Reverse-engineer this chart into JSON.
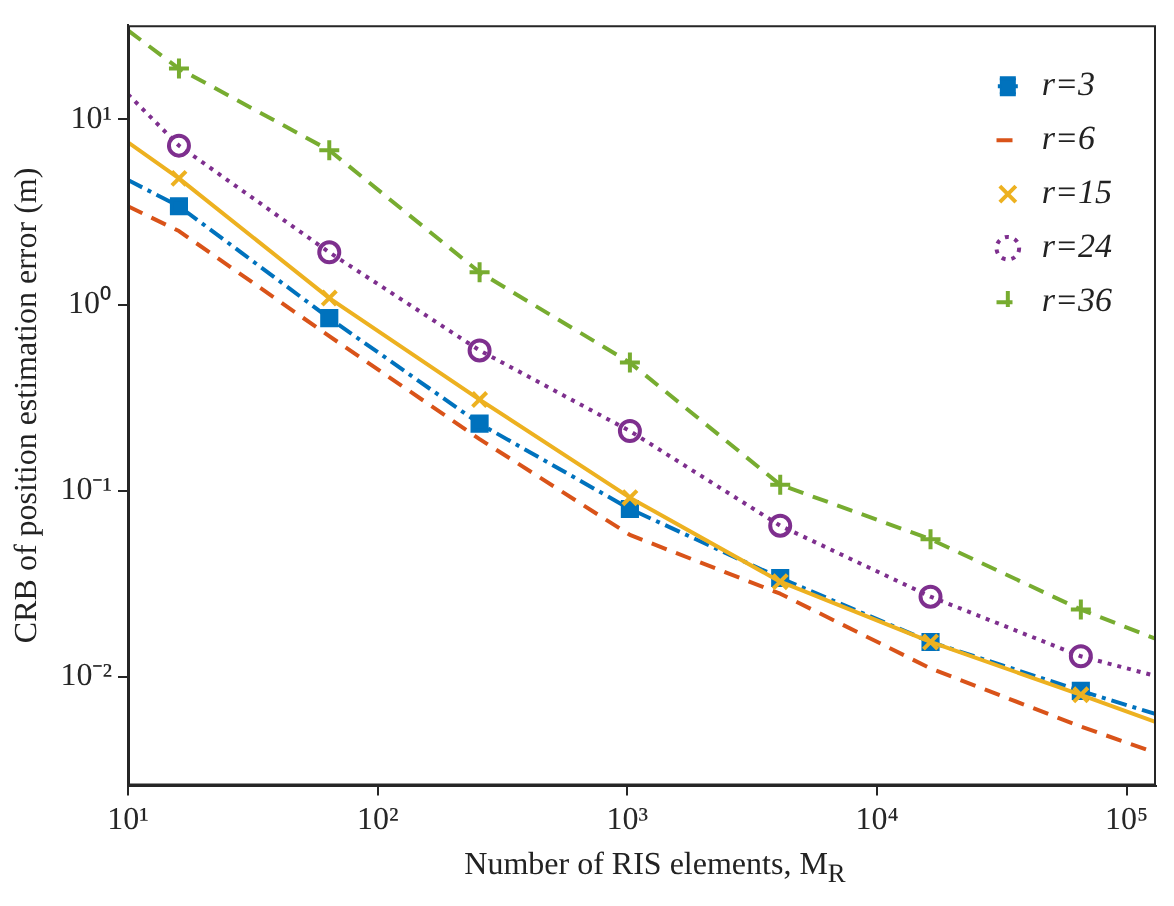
{
  "chart_data": {
    "type": "line",
    "xlabel": "Number of RIS elements, M$_{R}$",
    "ylabel": "CRB of position estimation error (m)",
    "log": "xy",
    "xlim": [
      10,
      131072
    ],
    "ylim": [
      0.0026,
      32
    ],
    "xticks": [
      {
        "value": 10,
        "label": "10¹"
      },
      {
        "value": 100,
        "label": "10²"
      },
      {
        "value": 1000,
        "label": "10³"
      },
      {
        "value": 10000,
        "label": "10⁴"
      },
      {
        "value": 100000,
        "label": "10⁵"
      }
    ],
    "yticks": [
      {
        "value": 0.01,
        "label": "10⁻²"
      },
      {
        "value": 0.1,
        "label": "10⁻¹"
      },
      {
        "value": 1,
        "label": "10⁰"
      },
      {
        "value": 10,
        "label": "10¹"
      }
    ],
    "x": [
      10,
      16,
      64,
      256,
      1024,
      4096,
      16384,
      65536,
      131072
    ],
    "grid": false,
    "legend": "top right",
    "series": [
      {
        "name": "r=3",
        "color": "#0072bd",
        "marker": "square",
        "line_style": "dashdot",
        "values": [
          4.7,
          3.4,
          0.85,
          0.23,
          0.08,
          0.034,
          0.0154,
          0.0084,
          0.0063
        ]
      },
      {
        "name": "r=6",
        "color": "#d95319",
        "marker": "none",
        "line_style": "dashed",
        "values": [
          3.4,
          2.5,
          0.68,
          0.19,
          0.058,
          0.028,
          0.0111,
          0.0054,
          0.0039
        ]
      },
      {
        "name": "r=15",
        "color": "#edb120",
        "marker": "x",
        "line_style": "solid",
        "values": [
          7.5,
          4.8,
          1.09,
          0.31,
          0.092,
          0.0325,
          0.0154,
          0.008,
          0.0057
        ]
      },
      {
        "name": "r=24",
        "color": "#7e2f8e",
        "marker": "circle",
        "line_style": "dotted",
        "values": [
          13.6,
          7.2,
          1.92,
          0.57,
          0.21,
          0.065,
          0.027,
          0.0129,
          0.0101
        ]
      },
      {
        "name": "r=36",
        "color": "#77ac30",
        "marker": "cross",
        "line_style": "dashed",
        "values": [
          30,
          18.7,
          6.8,
          1.5,
          0.49,
          0.108,
          0.055,
          0.023,
          0.016
        ]
      }
    ]
  }
}
